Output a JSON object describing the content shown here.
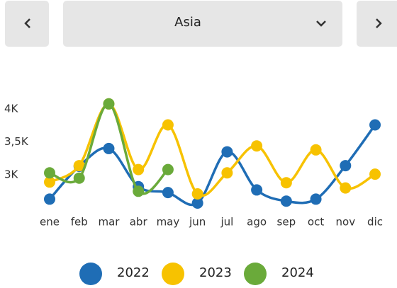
{
  "selector": {
    "label": "Asia"
  },
  "chart_data": {
    "type": "line",
    "categories": [
      "ene",
      "feb",
      "mar",
      "abr",
      "may",
      "jun",
      "jul",
      "ago",
      "sep",
      "oct",
      "nov",
      "dic"
    ],
    "series": [
      {
        "name": "2022",
        "color": "#1f6db5",
        "values": [
          2630,
          3130,
          3400,
          2820,
          2730,
          2570,
          3350,
          2770,
          2600,
          2630,
          3140,
          3760
        ]
      },
      {
        "name": "2023",
        "color": "#f7c200",
        "values": [
          2890,
          3140,
          4080,
          3080,
          3760,
          2710,
          3030,
          3440,
          2880,
          3380,
          2800,
          3010
        ]
      },
      {
        "name": "2024",
        "color": "#6aaa3a",
        "values": [
          3030,
          2950,
          4080,
          2750,
          3080,
          null,
          null,
          null,
          null,
          null,
          null,
          null
        ]
      }
    ],
    "ylim": [
      2500,
      4250
    ],
    "yticks": [
      {
        "value": 3000,
        "label": "3K"
      },
      {
        "value": 3500,
        "label": "3,5K"
      },
      {
        "value": 4000,
        "label": "4K"
      }
    ],
    "grid": false,
    "legend": "bottom"
  }
}
